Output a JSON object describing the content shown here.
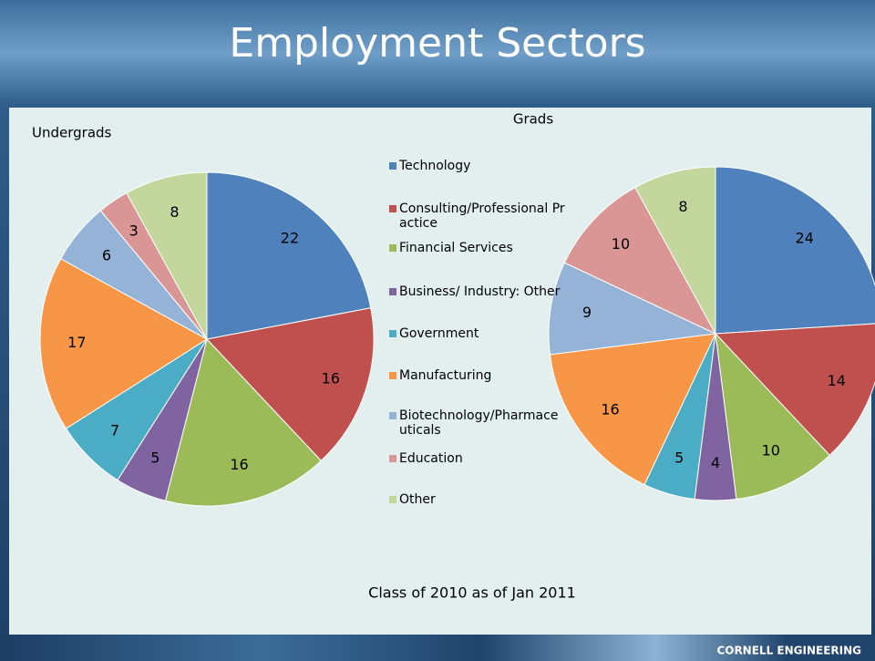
{
  "title": "Employment Sectors",
  "chart_data": [
    {
      "type": "pie",
      "title": "Undergrads",
      "categories": [
        "Technology",
        "Consulting/Professional Practice",
        "Financial Services",
        "Business/ Industry: Other",
        "Government",
        "Manufacturing",
        "Biotechnology/Pharmaceuticals",
        "Education",
        "Other"
      ],
      "values": [
        22,
        16,
        16,
        5,
        7,
        17,
        6,
        3,
        8
      ],
      "colors": [
        "#4F81BD",
        "#C0504D",
        "#9BBB59",
        "#8064A2",
        "#4BACC6",
        "#F79646",
        "#95B3D7",
        "#D99694",
        "#C3D69B"
      ]
    },
    {
      "type": "pie",
      "title": "Grads",
      "categories": [
        "Technology",
        "Consulting/Professional Practice",
        "Financial Services",
        "Business/ Industry: Other",
        "Government",
        "Manufacturing",
        "Biotechnology/Pharmaceuticals",
        "Education",
        "Other"
      ],
      "values": [
        24,
        14,
        10,
        4,
        5,
        16,
        9,
        10,
        8
      ],
      "colors": [
        "#4F81BD",
        "#C0504D",
        "#9BBB59",
        "#8064A2",
        "#4BACC6",
        "#F79646",
        "#95B3D7",
        "#D99694",
        "#C3D69B"
      ]
    }
  ],
  "caption": "Class of 2010 as of Jan 2011",
  "footer": "CORNELL ENGINEERING"
}
